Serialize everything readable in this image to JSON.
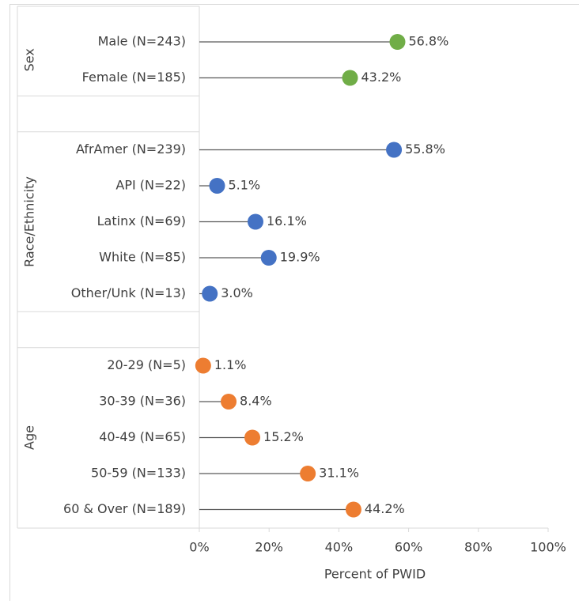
{
  "chart_data": {
    "type": "dot",
    "groups": [
      {
        "name": "Sex",
        "color": "#70ad47",
        "categories": [
          "Male (N=243)",
          "Female (N=185)"
        ],
        "values": [
          56.8,
          43.2
        ],
        "value_labels": [
          "56.8%",
          "43.2%"
        ]
      },
      {
        "name": "Race/Ethnicity",
        "color": "#4472c4",
        "categories": [
          "AfrAmer (N=239)",
          "API (N=22)",
          "Latinx (N=69)",
          "White (N=85)",
          "Other/Unk (N=13)"
        ],
        "values": [
          55.8,
          5.1,
          16.1,
          19.9,
          3.0
        ],
        "value_labels": [
          "55.8%",
          "5.1%",
          "16.1%",
          "19.9%",
          "3.0%"
        ]
      },
      {
        "name": "Age",
        "color": "#ed7d31",
        "categories": [
          "20-29 (N=5)",
          "30-39 (N=36)",
          "40-49 (N=65)",
          "50-59 (N=133)",
          "60 & Over (N=189)"
        ],
        "values": [
          1.1,
          8.4,
          15.2,
          31.1,
          44.2
        ],
        "value_labels": [
          "1.1%",
          "8.4%",
          "15.2%",
          "31.1%",
          "44.2%"
        ]
      }
    ],
    "x_label": "Percent of PWID",
    "xlim": [
      0,
      100
    ],
    "xticks": [
      {
        "value": 0,
        "label": "0%"
      },
      {
        "value": 20,
        "label": "20%"
      },
      {
        "value": 40,
        "label": "40%"
      },
      {
        "value": 60,
        "label": "60%"
      },
      {
        "value": 80,
        "label": "80%"
      },
      {
        "value": 100,
        "label": "100%"
      }
    ]
  }
}
